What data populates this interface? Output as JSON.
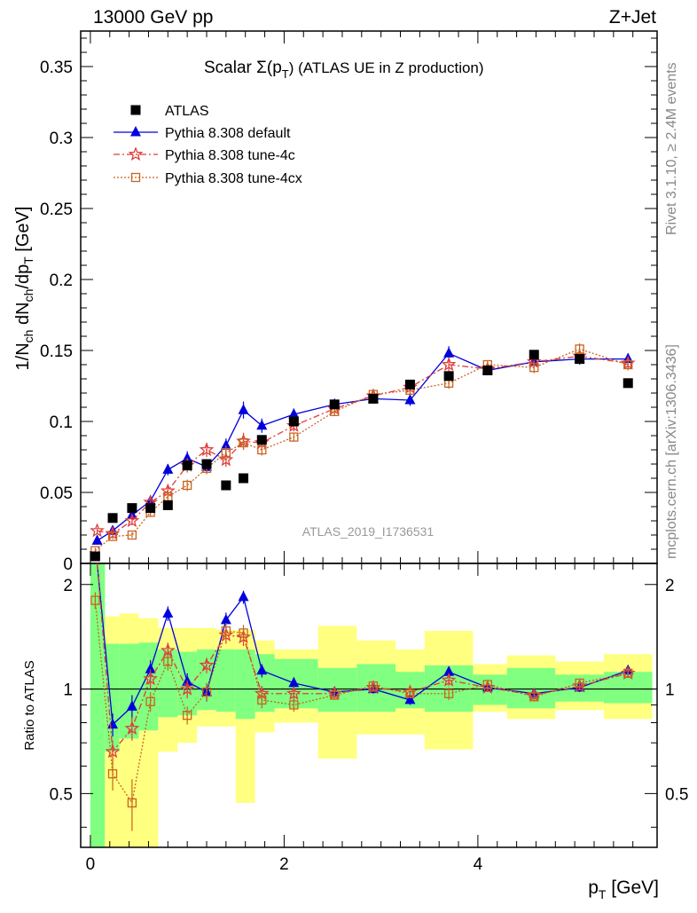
{
  "header": {
    "left": "13000 GeV pp",
    "right": "Z+Jet"
  },
  "side": {
    "rivet": "Rivet 3.1.10, ≥ 2.4M events",
    "mcplots": "mcplots.cern.ch [arXiv:1306.3436]"
  },
  "chart_data": {
    "type": "scatter",
    "title_main": "Scalar Σ(p",
    "title_sub": "T",
    "title_tail": ") (ATLAS UE in Z production)",
    "analysis_label": "ATLAS_2019_I1736531",
    "ylabel_main": "1/N",
    "ylabel_parts": [
      "ch",
      " dN",
      "ch",
      "/dp",
      "T",
      " [GeV]"
    ],
    "ratio_ylabel": "Ratio to ATLAS",
    "xlabel_main": "p",
    "xlabel_sub": "T",
    "xlabel_tail": " [GeV]",
    "xlim": [
      -0.1,
      5.85
    ],
    "ylim": [
      0,
      0.375
    ],
    "ratio_ylim": [
      0.35,
      2.3
    ],
    "ratio_log": true,
    "x_ticks": [
      "0",
      "2",
      "4"
    ],
    "y_ticks": [
      "0",
      "0.05",
      "0.1",
      "0.15",
      "0.2",
      "0.25",
      "0.3",
      "0.35"
    ],
    "ratio_ticks": [
      "0.5",
      "1",
      "2"
    ],
    "bins": [
      [
        0,
        0.15
      ],
      [
        0.15,
        0.3
      ],
      [
        0.3,
        0.5
      ],
      [
        0.5,
        0.7
      ],
      [
        0.7,
        0.9
      ],
      [
        0.9,
        1.1
      ],
      [
        1.1,
        1.3
      ],
      [
        1.3,
        1.5
      ],
      [
        1.5,
        1.7
      ],
      [
        1.7,
        1.9
      ],
      [
        1.9,
        2.35
      ],
      [
        2.35,
        2.75
      ],
      [
        2.75,
        3.15
      ],
      [
        3.15,
        3.45
      ],
      [
        3.45,
        3.95
      ],
      [
        3.95,
        4.3
      ],
      [
        4.3,
        4.8
      ],
      [
        4.8,
        5.3
      ],
      [
        5.3,
        5.8
      ]
    ],
    "band_green": [
      [
        0.001,
        2.3
      ],
      [
        0.66,
        1.35
      ],
      [
        0.72,
        1.35
      ],
      [
        0.76,
        1.36
      ],
      [
        0.83,
        1.3
      ],
      [
        0.84,
        1.28
      ],
      [
        0.87,
        1.3
      ],
      [
        0.86,
        1.3
      ],
      [
        0.82,
        1.3
      ],
      [
        0.86,
        1.26
      ],
      [
        0.88,
        1.22
      ],
      [
        0.86,
        1.15
      ],
      [
        0.86,
        1.18
      ],
      [
        0.88,
        1.12
      ],
      [
        0.86,
        1.17
      ],
      [
        0.9,
        1.1
      ],
      [
        0.88,
        1.15
      ],
      [
        0.92,
        1.1
      ],
      [
        0.91,
        1.12
      ]
    ],
    "band_yellow": [
      [
        0.001,
        2.3
      ],
      [
        0.3,
        1.62
      ],
      [
        0.35,
        1.65
      ],
      [
        0.35,
        1.6
      ],
      [
        0.66,
        1.5
      ],
      [
        0.7,
        1.5
      ],
      [
        0.78,
        1.5
      ],
      [
        0.78,
        1.48
      ],
      [
        0.47,
        1.48
      ],
      [
        0.75,
        1.38
      ],
      [
        0.8,
        1.3
      ],
      [
        0.63,
        1.52
      ],
      [
        0.74,
        1.38
      ],
      [
        0.74,
        1.3
      ],
      [
        0.67,
        1.47
      ],
      [
        0.86,
        1.18
      ],
      [
        0.82,
        1.25
      ],
      [
        0.87,
        1.2
      ],
      [
        0.82,
        1.26
      ]
    ],
    "legend": [
      {
        "label": "ATLAS",
        "marker": "square",
        "color": "#000000"
      },
      {
        "label": "Pythia 8.308 default",
        "marker": "triangle",
        "color": "#0000dd",
        "dash": ""
      },
      {
        "label": "Pythia 8.308 tune-4c",
        "marker": "star",
        "color": "#e03c3c",
        "dash": "7,3,2,3"
      },
      {
        "label": "Pythia 8.308 tune-4cx",
        "marker": "opensquare",
        "color": "#c8641e",
        "dash": "2,2"
      }
    ],
    "series": [
      {
        "key": "atlas",
        "x": [
          0.05,
          0.23,
          0.43,
          0.62,
          0.8,
          1.0,
          1.2,
          1.4,
          1.58,
          1.77,
          2.1,
          2.52,
          2.92,
          3.3,
          3.7,
          4.1,
          4.58,
          5.05,
          5.55
        ],
        "y": [
          0.005,
          0.032,
          0.039,
          0.039,
          0.041,
          0.069,
          0.07,
          0.055,
          0.06,
          0.087,
          0.1,
          0.112,
          0.116,
          0.126,
          0.132,
          0.136,
          0.147,
          0.144,
          0.127
        ]
      },
      {
        "key": "default",
        "x": [
          0.07,
          0.23,
          0.43,
          0.62,
          0.8,
          1.0,
          1.2,
          1.4,
          1.58,
          1.77,
          2.1,
          2.52,
          2.92,
          3.3,
          3.7,
          4.1,
          4.58,
          5.05,
          5.55
        ],
        "y": [
          0.016,
          0.023,
          0.034,
          0.044,
          0.066,
          0.074,
          0.068,
          0.083,
          0.108,
          0.097,
          0.105,
          0.112,
          0.116,
          0.115,
          0.148,
          0.136,
          0.142,
          0.144,
          0.144
        ],
        "err": [
          0.002,
          0.003,
          0.003,
          0.004,
          0.004,
          0.005,
          0.005,
          0.005,
          0.006,
          0.005,
          0.004,
          0.003,
          0.003,
          0.004,
          0.005,
          0.003,
          0.004,
          0.004,
          0.004
        ],
        "ratio": [
          2.4,
          0.79,
          0.89,
          1.14,
          1.65,
          1.05,
          0.98,
          1.58,
          1.84,
          1.13,
          1.04,
          0.98,
          1.0,
          0.93,
          1.12,
          1.01,
          0.97,
          1.01,
          1.13
        ],
        "ratio_err": [
          0.1,
          0.06,
          0.07,
          0.07,
          0.08,
          0.06,
          0.06,
          0.08,
          0.08,
          0.05,
          0.04,
          0.03,
          0.03,
          0.03,
          0.04,
          0.03,
          0.03,
          0.03,
          0.03
        ]
      },
      {
        "key": "tune4c",
        "x": [
          0.07,
          0.23,
          0.43,
          0.62,
          0.8,
          1.0,
          1.2,
          1.4,
          1.58,
          1.77,
          2.1,
          2.52,
          2.92,
          3.3,
          3.7,
          4.1,
          4.58,
          5.05,
          5.55
        ],
        "y": [
          0.023,
          0.021,
          0.03,
          0.043,
          0.051,
          0.069,
          0.08,
          0.073,
          0.086,
          0.085,
          0.097,
          0.109,
          0.118,
          0.124,
          0.14,
          0.137,
          0.142,
          0.146,
          0.141
        ],
        "err": [
          0.002,
          0.003,
          0.003,
          0.004,
          0.004,
          0.005,
          0.005,
          0.005,
          0.006,
          0.005,
          0.004,
          0.003,
          0.003,
          0.004,
          0.005,
          0.003,
          0.004,
          0.004,
          0.004
        ],
        "ratio": [
          4.6,
          0.66,
          0.77,
          1.07,
          1.29,
          1.0,
          1.17,
          1.43,
          1.41,
          0.97,
          0.97,
          0.97,
          1.01,
          0.98,
          1.06,
          1.01,
          0.96,
          1.02,
          1.11
        ],
        "ratio_err": [
          0.1,
          0.05,
          0.06,
          0.07,
          0.07,
          0.06,
          0.06,
          0.08,
          0.08,
          0.05,
          0.04,
          0.03,
          0.03,
          0.03,
          0.04,
          0.03,
          0.03,
          0.03,
          0.03
        ]
      },
      {
        "key": "tune4cx",
        "x": [
          0.05,
          0.23,
          0.43,
          0.62,
          0.8,
          1.0,
          1.2,
          1.4,
          1.58,
          1.77,
          2.1,
          2.52,
          2.92,
          3.3,
          3.7,
          4.1,
          4.58,
          5.05,
          5.55
        ],
        "y": [
          0.009,
          0.019,
          0.02,
          0.036,
          0.047,
          0.055,
          0.067,
          0.078,
          0.085,
          0.08,
          0.089,
          0.107,
          0.119,
          0.122,
          0.127,
          0.14,
          0.138,
          0.151,
          0.14
        ],
        "err": [
          0.002,
          0.002,
          0.002,
          0.003,
          0.004,
          0.004,
          0.004,
          0.005,
          0.005,
          0.004,
          0.003,
          0.003,
          0.003,
          0.003,
          0.004,
          0.003,
          0.004,
          0.004,
          0.004
        ],
        "ratio": [
          1.8,
          0.57,
          0.47,
          0.92,
          1.2,
          0.84,
          0.98,
          1.47,
          1.45,
          0.93,
          0.9,
          0.96,
          1.02,
          0.97,
          0.97,
          1.03,
          0.95,
          1.04,
          1.11
        ],
        "ratio_err": [
          0.1,
          0.06,
          0.08,
          0.06,
          0.07,
          0.05,
          0.06,
          0.08,
          0.08,
          0.05,
          0.04,
          0.03,
          0.03,
          0.03,
          0.04,
          0.03,
          0.03,
          0.03,
          0.03
        ]
      }
    ]
  }
}
